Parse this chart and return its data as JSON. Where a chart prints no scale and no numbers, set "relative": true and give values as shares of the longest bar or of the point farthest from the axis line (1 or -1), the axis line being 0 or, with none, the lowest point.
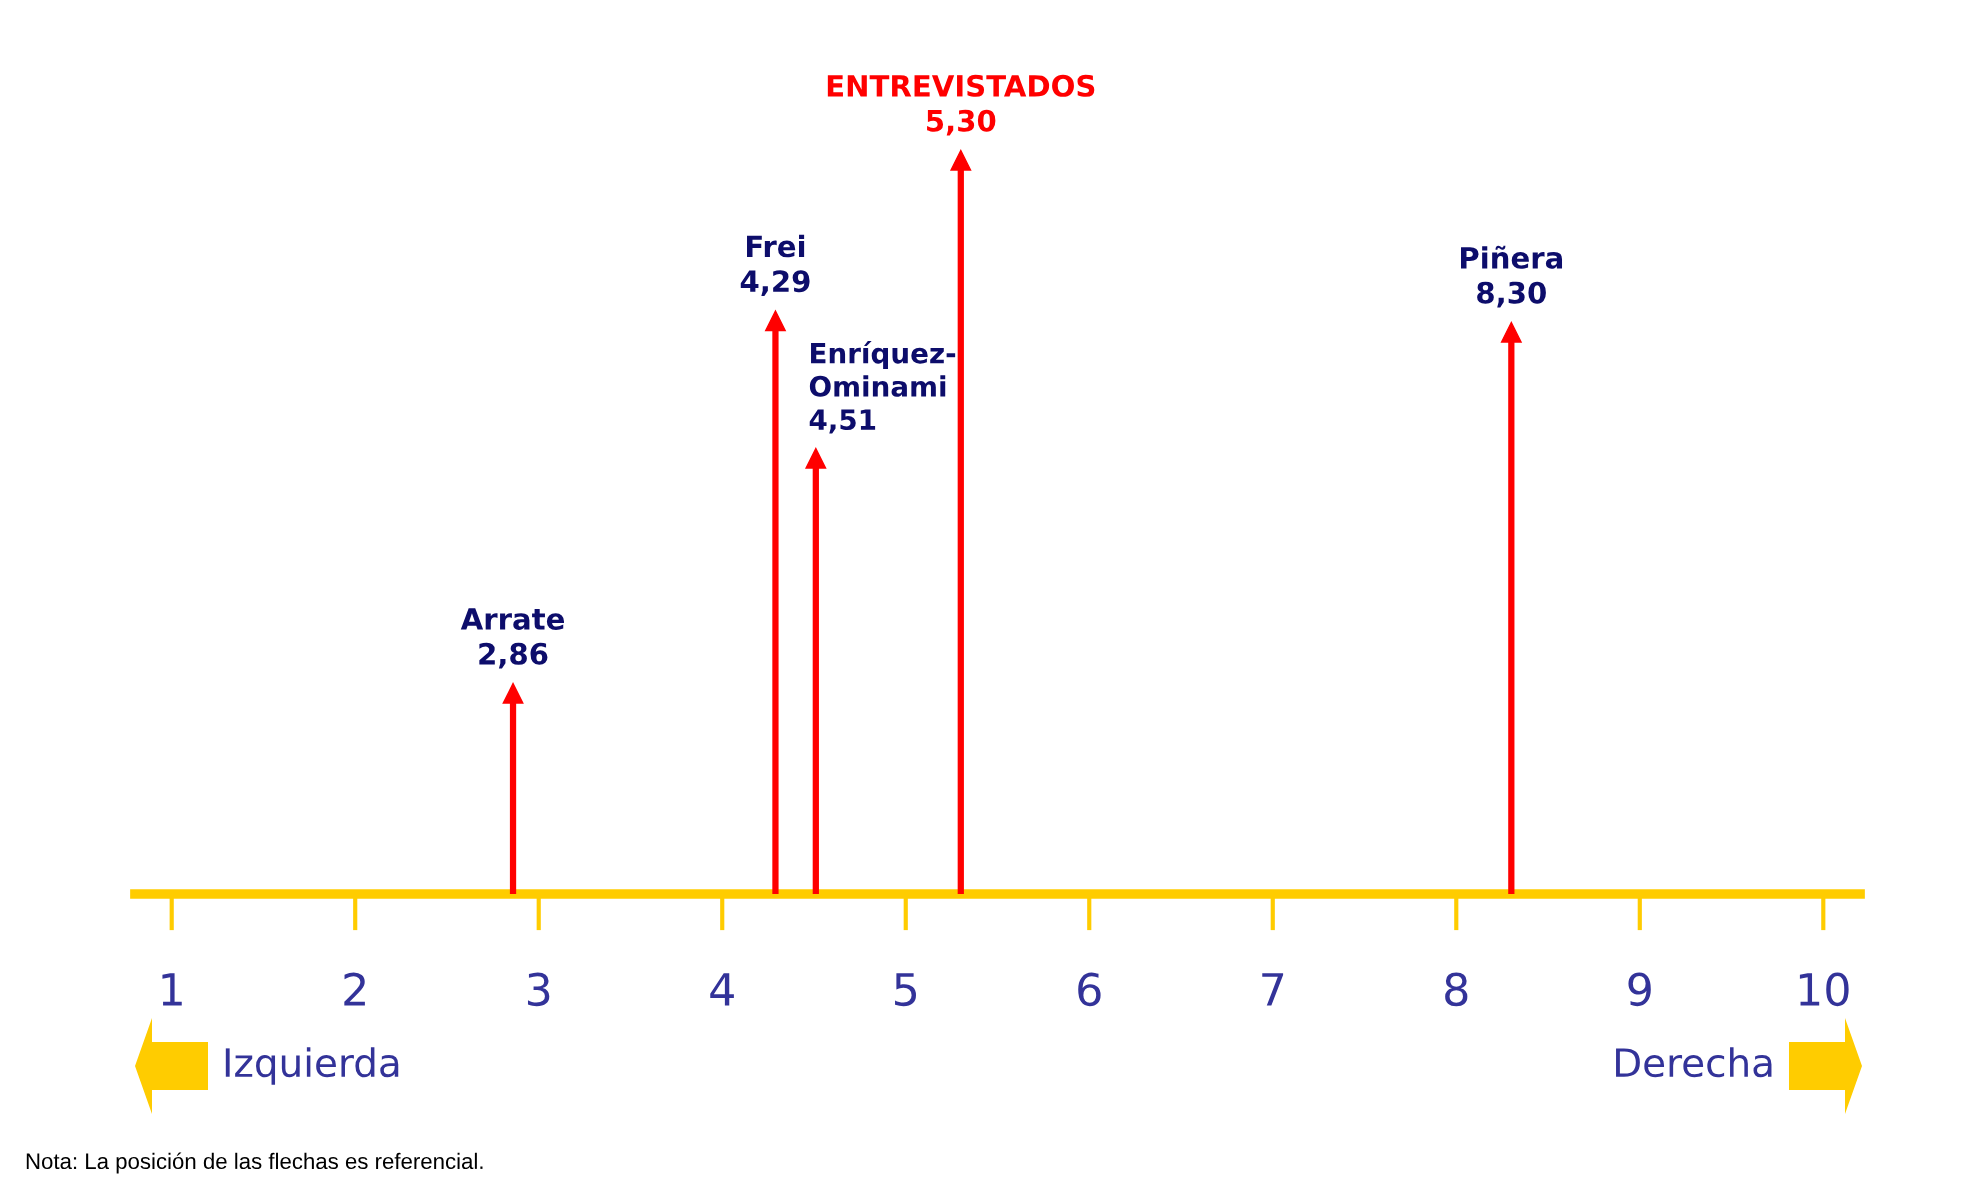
{
  "chart_data": {
    "type": "lollipop",
    "relative": true,
    "marker": "triangle",
    "xlim": [
      0.8,
      10.2
    ],
    "xticks": [
      1,
      2,
      3,
      4,
      5,
      6,
      7,
      8,
      9,
      10
    ],
    "x": [
      2.86,
      4.29,
      4.51,
      8.3
    ],
    "series": [
      {
        "color": "#ff0000",
        "values": [
          0.35,
          1.0,
          0.76,
          0.98
        ]
      }
    ],
    "ref_lines": [
      {
        "axis": "x",
        "value": 5.3,
        "label": "ENTREVISTADOS\n5,30",
        "color": "#ff0000"
      }
    ],
    "annotations": [
      {
        "text": "Arrate\n2,86",
        "x": 2.86,
        "y": 0.35
      },
      {
        "text": "Frei\n4,29",
        "x": 4.29,
        "y": 1.0
      },
      {
        "text": "Enríquez-\nOminami\n4,51",
        "x": 4.51,
        "y": 0.76
      },
      {
        "text": "Piñera\n8,30",
        "x": 8.3,
        "y": 0.98
      },
      "Izquierda",
      "Derecha",
      "Nota: La posición de las flechas es referencial."
    ]
  }
}
